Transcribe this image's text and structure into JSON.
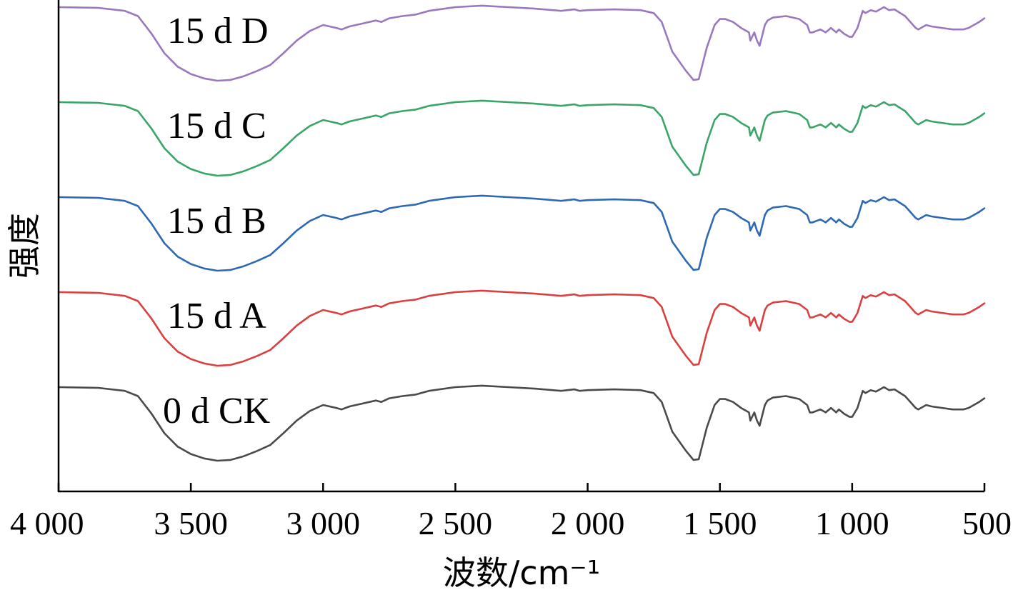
{
  "chart_data": {
    "type": "line",
    "xlabel": "波数/cm⁻¹",
    "ylabel": "强度",
    "xlim": [
      4000,
      500
    ],
    "x_reversed": true,
    "y_ticks_shown": false,
    "grid": false,
    "x_ticks": [
      {
        "value": 4000,
        "label": "4 000"
      },
      {
        "value": 3500,
        "label": "3 500"
      },
      {
        "value": 3000,
        "label": "3 000"
      },
      {
        "value": 2500,
        "label": "2 500"
      },
      {
        "value": 2000,
        "label": "2 000"
      },
      {
        "value": 1500,
        "label": "1 500"
      },
      {
        "value": 1000,
        "label": "1 000"
      },
      {
        "value": 500,
        "label": "500"
      }
    ],
    "x": [
      4000,
      3850,
      3750,
      3700,
      3650,
      3600,
      3550,
      3500,
      3450,
      3400,
      3350,
      3300,
      3250,
      3200,
      3150,
      3100,
      3050,
      3000,
      2950,
      2930,
      2900,
      2850,
      2800,
      2780,
      2750,
      2700,
      2650,
      2600,
      2500,
      2400,
      2300,
      2200,
      2100,
      2050,
      2030,
      2000,
      1900,
      1800,
      1750,
      1720,
      1700,
      1680,
      1650,
      1630,
      1600,
      1580,
      1550,
      1520,
      1500,
      1480,
      1450,
      1420,
      1400,
      1390,
      1385,
      1370,
      1360,
      1350,
      1340,
      1330,
      1320,
      1300,
      1250,
      1200,
      1170,
      1160,
      1150,
      1120,
      1100,
      1080,
      1060,
      1050,
      1030,
      1010,
      1000,
      980,
      960,
      950,
      930,
      910,
      880,
      860,
      840,
      800,
      780,
      760,
      750,
      720,
      700,
      660,
      620,
      600,
      580,
      560,
      540,
      520,
      500
    ],
    "series": [
      {
        "name": "0 d CK",
        "color": "#4a4a4a",
        "offset": 0,
        "values": [
          0.0,
          -0.01,
          -0.05,
          -0.12,
          -0.35,
          -0.62,
          -0.8,
          -0.9,
          -0.96,
          -0.99,
          -0.98,
          -0.93,
          -0.86,
          -0.78,
          -0.62,
          -0.45,
          -0.32,
          -0.24,
          -0.28,
          -0.3,
          -0.26,
          -0.22,
          -0.18,
          -0.2,
          -0.15,
          -0.12,
          -0.1,
          -0.05,
          0.0,
          0.02,
          0.0,
          -0.02,
          -0.05,
          -0.03,
          -0.05,
          -0.04,
          -0.03,
          -0.04,
          -0.08,
          -0.2,
          -0.4,
          -0.6,
          -0.75,
          -0.85,
          -0.98,
          -0.97,
          -0.55,
          -0.24,
          -0.16,
          -0.16,
          -0.2,
          -0.28,
          -0.32,
          -0.34,
          -0.45,
          -0.34,
          -0.45,
          -0.52,
          -0.38,
          -0.24,
          -0.18,
          -0.14,
          -0.12,
          -0.16,
          -0.24,
          -0.34,
          -0.34,
          -0.3,
          -0.34,
          -0.28,
          -0.34,
          -0.3,
          -0.36,
          -0.4,
          -0.4,
          -0.28,
          -0.05,
          -0.08,
          -0.04,
          -0.06,
          0.0,
          -0.04,
          -0.03,
          -0.12,
          -0.2,
          -0.28,
          -0.3,
          -0.24,
          -0.26,
          -0.28,
          -0.3,
          -0.3,
          -0.3,
          -0.28,
          -0.24,
          -0.2,
          -0.15
        ]
      },
      {
        "name": "15 d A",
        "color": "#d9403f",
        "offset": 1,
        "values": [
          0.0,
          -0.01,
          -0.05,
          -0.12,
          -0.35,
          -0.62,
          -0.8,
          -0.9,
          -0.96,
          -0.99,
          -0.98,
          -0.93,
          -0.86,
          -0.78,
          -0.62,
          -0.45,
          -0.32,
          -0.24,
          -0.28,
          -0.3,
          -0.26,
          -0.22,
          -0.18,
          -0.2,
          -0.15,
          -0.12,
          -0.1,
          -0.05,
          0.0,
          0.02,
          0.0,
          -0.02,
          -0.05,
          -0.03,
          -0.05,
          -0.04,
          -0.03,
          -0.04,
          -0.08,
          -0.2,
          -0.4,
          -0.6,
          -0.75,
          -0.85,
          -0.98,
          -0.97,
          -0.55,
          -0.24,
          -0.16,
          -0.16,
          -0.2,
          -0.28,
          -0.32,
          -0.34,
          -0.45,
          -0.34,
          -0.45,
          -0.52,
          -0.38,
          -0.24,
          -0.18,
          -0.14,
          -0.12,
          -0.16,
          -0.24,
          -0.34,
          -0.34,
          -0.3,
          -0.34,
          -0.28,
          -0.34,
          -0.3,
          -0.36,
          -0.4,
          -0.4,
          -0.28,
          -0.05,
          -0.08,
          -0.04,
          -0.06,
          0.0,
          -0.04,
          -0.03,
          -0.12,
          -0.2,
          -0.28,
          -0.3,
          -0.24,
          -0.26,
          -0.28,
          -0.3,
          -0.3,
          -0.3,
          -0.28,
          -0.24,
          -0.2,
          -0.15
        ]
      },
      {
        "name": "15 d B",
        "color": "#2e69b3",
        "offset": 2,
        "values": [
          0.0,
          -0.01,
          -0.05,
          -0.12,
          -0.35,
          -0.62,
          -0.8,
          -0.9,
          -0.96,
          -0.99,
          -0.98,
          -0.93,
          -0.86,
          -0.78,
          -0.62,
          -0.45,
          -0.32,
          -0.24,
          -0.28,
          -0.3,
          -0.26,
          -0.22,
          -0.18,
          -0.2,
          -0.15,
          -0.12,
          -0.1,
          -0.05,
          0.0,
          0.02,
          0.0,
          -0.02,
          -0.05,
          -0.03,
          -0.05,
          -0.04,
          -0.03,
          -0.04,
          -0.08,
          -0.2,
          -0.4,
          -0.6,
          -0.75,
          -0.85,
          -0.98,
          -0.97,
          -0.55,
          -0.24,
          -0.16,
          -0.16,
          -0.2,
          -0.28,
          -0.32,
          -0.34,
          -0.45,
          -0.34,
          -0.45,
          -0.52,
          -0.38,
          -0.24,
          -0.18,
          -0.14,
          -0.12,
          -0.16,
          -0.24,
          -0.34,
          -0.34,
          -0.3,
          -0.34,
          -0.28,
          -0.34,
          -0.3,
          -0.36,
          -0.4,
          -0.4,
          -0.28,
          -0.05,
          -0.08,
          -0.04,
          -0.06,
          0.0,
          -0.04,
          -0.03,
          -0.12,
          -0.2,
          -0.28,
          -0.3,
          -0.24,
          -0.26,
          -0.28,
          -0.3,
          -0.3,
          -0.3,
          -0.28,
          -0.24,
          -0.2,
          -0.15
        ]
      },
      {
        "name": "15 d C",
        "color": "#3aa567",
        "offset": 3,
        "values": [
          0.0,
          -0.01,
          -0.05,
          -0.12,
          -0.35,
          -0.62,
          -0.8,
          -0.9,
          -0.96,
          -0.99,
          -0.98,
          -0.93,
          -0.86,
          -0.78,
          -0.62,
          -0.45,
          -0.32,
          -0.24,
          -0.28,
          -0.3,
          -0.26,
          -0.22,
          -0.18,
          -0.2,
          -0.15,
          -0.12,
          -0.1,
          -0.05,
          0.0,
          0.02,
          0.0,
          -0.02,
          -0.05,
          -0.03,
          -0.05,
          -0.04,
          -0.03,
          -0.04,
          -0.08,
          -0.2,
          -0.4,
          -0.6,
          -0.75,
          -0.85,
          -0.98,
          -0.97,
          -0.55,
          -0.24,
          -0.16,
          -0.16,
          -0.2,
          -0.28,
          -0.32,
          -0.34,
          -0.45,
          -0.34,
          -0.45,
          -0.52,
          -0.38,
          -0.24,
          -0.18,
          -0.14,
          -0.12,
          -0.16,
          -0.24,
          -0.34,
          -0.34,
          -0.3,
          -0.34,
          -0.28,
          -0.34,
          -0.3,
          -0.36,
          -0.4,
          -0.4,
          -0.28,
          -0.05,
          -0.08,
          -0.04,
          -0.06,
          0.0,
          -0.04,
          -0.03,
          -0.12,
          -0.2,
          -0.28,
          -0.3,
          -0.24,
          -0.26,
          -0.28,
          -0.3,
          -0.3,
          -0.3,
          -0.28,
          -0.24,
          -0.2,
          -0.15
        ]
      },
      {
        "name": "15 d D",
        "color": "#9a78bf",
        "offset": 4,
        "values": [
          0.0,
          -0.01,
          -0.05,
          -0.12,
          -0.35,
          -0.62,
          -0.8,
          -0.9,
          -0.96,
          -0.99,
          -0.98,
          -0.93,
          -0.86,
          -0.78,
          -0.62,
          -0.45,
          -0.32,
          -0.24,
          -0.28,
          -0.3,
          -0.26,
          -0.22,
          -0.18,
          -0.2,
          -0.15,
          -0.12,
          -0.1,
          -0.05,
          0.0,
          0.02,
          0.0,
          -0.02,
          -0.05,
          -0.03,
          -0.05,
          -0.04,
          -0.03,
          -0.04,
          -0.08,
          -0.2,
          -0.4,
          -0.6,
          -0.75,
          -0.85,
          -0.98,
          -0.97,
          -0.55,
          -0.24,
          -0.16,
          -0.16,
          -0.2,
          -0.28,
          -0.32,
          -0.34,
          -0.45,
          -0.34,
          -0.45,
          -0.52,
          -0.38,
          -0.24,
          -0.18,
          -0.14,
          -0.12,
          -0.16,
          -0.24,
          -0.34,
          -0.34,
          -0.3,
          -0.34,
          -0.28,
          -0.34,
          -0.3,
          -0.36,
          -0.4,
          -0.4,
          -0.28,
          -0.05,
          -0.08,
          -0.04,
          -0.06,
          0.0,
          -0.04,
          -0.03,
          -0.12,
          -0.2,
          -0.28,
          -0.3,
          -0.24,
          -0.26,
          -0.28,
          -0.3,
          -0.3,
          -0.3,
          -0.28,
          -0.24,
          -0.2,
          -0.15
        ]
      }
    ]
  }
}
